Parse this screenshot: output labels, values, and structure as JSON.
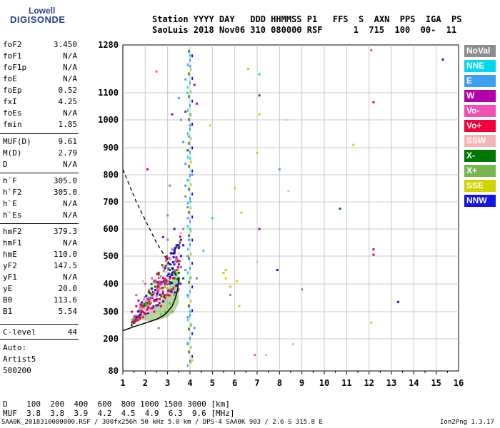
{
  "logo": {
    "line1": "Lowell",
    "line2": "DIGISONDE"
  },
  "header": {
    "line1": "Station YYYY DAY   DDD HHMMSS P1   FFS  S  AXN  PPS  IGA  PS",
    "line2": "SaoLuis 2018 Nov06 310 080000 RSF      1  715  100  00-  11"
  },
  "params": [
    {
      "name": "foF2",
      "value": "3.450"
    },
    {
      "name": "foF1",
      "value": "N/A"
    },
    {
      "name": "foF1p",
      "value": "N/A"
    },
    {
      "name": "foE",
      "value": "N/A"
    },
    {
      "name": "foEp",
      "value": "0.52"
    },
    {
      "name": "fxI",
      "value": "4.25"
    },
    {
      "name": "foEs",
      "value": "N/A"
    },
    {
      "name": "fmin",
      "value": "1.85"
    },
    {
      "name": "MUF(D)",
      "value": "9.61"
    },
    {
      "name": "M(D)",
      "value": "2.79"
    },
    {
      "name": "D",
      "value": "N/A"
    },
    {
      "name": "h`F",
      "value": "305.0"
    },
    {
      "name": "h`F2",
      "value": "305.0"
    },
    {
      "name": "h`E",
      "value": "N/A"
    },
    {
      "name": "h`Es",
      "value": "N/A"
    },
    {
      "name": "hmF2",
      "value": "379.3"
    },
    {
      "name": "hmF1",
      "value": "N/A"
    },
    {
      "name": "hmE",
      "value": "110.0"
    },
    {
      "name": "yF2",
      "value": "147.5"
    },
    {
      "name": "yF1",
      "value": "N/A"
    },
    {
      "name": "yE",
      "value": "20.0"
    },
    {
      "name": "B0",
      "value": "113.6"
    },
    {
      "name": "B1",
      "value": "5.54"
    },
    {
      "name": "C-level",
      "value": "44"
    }
  ],
  "notes": {
    "auto": "Auto:",
    "artist": "Artist5",
    "version": "500200"
  },
  "legend": [
    {
      "label": "NoVal",
      "color": "#8c8c8c"
    },
    {
      "label": "NNE",
      "color": "#00d8f0"
    },
    {
      "label": "E",
      "color": "#3ca0f0"
    },
    {
      "label": "W",
      "color": "#b400a8"
    },
    {
      "label": "Vo-",
      "color": "#f050b0"
    },
    {
      "label": "Vo+",
      "color": "#f0003c"
    },
    {
      "label": "SSW",
      "color": "#f5b4b4"
    },
    {
      "label": "X-",
      "color": "#007800"
    },
    {
      "label": "X+",
      "color": "#78b450"
    },
    {
      "label": "SSE",
      "color": "#d2d200"
    },
    {
      "label": "NNW",
      "color": "#1414e6"
    }
  ],
  "bottom": {
    "d_row": "D    100  200  400  600  800 1000 1500 3000 [km]",
    "muf_row": "MUF  3.8  3.8  3.9  4.2  4.5  4.9  6.3  9.6 [MHz]"
  },
  "footer": {
    "left": "SAA0K_2018310080000.RSF / 300fx256h 50 kHz 5.0 km / DPS-4 SAA0K 903 / 2.6 S 315.8 E",
    "right": "Ion2Png 1.3.17"
  },
  "chart_data": {
    "type": "scatter",
    "x_ticks": [
      "1",
      "2",
      "3",
      "4",
      "5",
      "6",
      "7",
      "8",
      "9",
      "10",
      "11",
      "12",
      "13",
      "14",
      "15",
      "16"
    ],
    "y_ticks": [
      "80",
      "200",
      "300",
      "400",
      "500",
      "600",
      "700",
      "800",
      "900",
      "1000",
      "1100",
      "1280"
    ],
    "xlim": [
      1,
      16
    ],
    "ylim": [
      80,
      1280
    ],
    "grid": true,
    "profile_dashed": [
      [
        1,
        820
      ],
      [
        1.3,
        760
      ],
      [
        1.6,
        700
      ],
      [
        1.9,
        650
      ],
      [
        2.2,
        600
      ],
      [
        2.5,
        550
      ],
      [
        2.8,
        510
      ],
      [
        3.1,
        470
      ],
      [
        3.3,
        440
      ],
      [
        3.45,
        420
      ]
    ],
    "trace_solid": [
      [
        1,
        230
      ],
      [
        1.5,
        245
      ],
      [
        2,
        258
      ],
      [
        2.5,
        272
      ],
      [
        2.8,
        285
      ],
      [
        3.0,
        300
      ],
      [
        3.2,
        320
      ],
      [
        3.35,
        350
      ],
      [
        3.45,
        380
      ],
      [
        3.5,
        420
      ]
    ],
    "ohw_region": [
      [
        1.6,
        280
      ],
      [
        2.2,
        300
      ],
      [
        2.6,
        330
      ],
      [
        3.0,
        380
      ],
      [
        3.3,
        430
      ],
      [
        3.45,
        460
      ],
      [
        3.5,
        400
      ],
      [
        3.5,
        330
      ],
      [
        3.3,
        300
      ],
      [
        3.0,
        280
      ],
      [
        2.6,
        270
      ],
      [
        2.2,
        265
      ],
      [
        1.6,
        275
      ]
    ],
    "points": [
      {
        "x": 3.2,
        "y": 510,
        "c": "NNW"
      },
      {
        "x": 3.4,
        "y": 490,
        "c": "NNW"
      },
      {
        "x": 3.5,
        "y": 530,
        "c": "NNW"
      },
      {
        "x": 3.6,
        "y": 560,
        "c": "NNW"
      },
      {
        "x": 3.3,
        "y": 470,
        "c": "NNW"
      },
      {
        "x": 3.5,
        "y": 470,
        "c": "NNW"
      },
      {
        "x": 3.6,
        "y": 500,
        "c": "NNW"
      },
      {
        "x": 3.4,
        "y": 540,
        "c": "NNW"
      },
      {
        "x": 3.1,
        "y": 450,
        "c": "NNW"
      },
      {
        "x": 3.7,
        "y": 540,
        "c": "NNW"
      },
      {
        "x": 3.3,
        "y": 600,
        "c": "NNW"
      },
      {
        "x": 3.0,
        "y": 430,
        "c": "NNW"
      },
      {
        "x": 2.8,
        "y": 410,
        "c": "NNW"
      },
      {
        "x": 3.5,
        "y": 420,
        "c": "NNW"
      },
      {
        "x": 7.9,
        "y": 450,
        "c": "NNW"
      },
      {
        "x": 13.3,
        "y": 335,
        "c": "NNW"
      },
      {
        "x": 15.3,
        "y": 1225,
        "c": "NNW"
      },
      {
        "x": 1.4,
        "y": 300,
        "c": "Vo+"
      },
      {
        "x": 1.6,
        "y": 320,
        "c": "Vo+"
      },
      {
        "x": 1.8,
        "y": 290,
        "c": "Vo+"
      },
      {
        "x": 2.0,
        "y": 330,
        "c": "Vo+"
      },
      {
        "x": 2.1,
        "y": 310,
        "c": "Vo+"
      },
      {
        "x": 2.3,
        "y": 360,
        "c": "Vo+"
      },
      {
        "x": 2.5,
        "y": 340,
        "c": "Vo+"
      },
      {
        "x": 2.6,
        "y": 390,
        "c": "Vo+"
      },
      {
        "x": 2.8,
        "y": 370,
        "c": "Vo+"
      },
      {
        "x": 3.0,
        "y": 400,
        "c": "Vo+"
      },
      {
        "x": 3.1,
        "y": 420,
        "c": "Vo+"
      },
      {
        "x": 2.4,
        "y": 300,
        "c": "Vo+"
      },
      {
        "x": 1.9,
        "y": 280,
        "c": "Vo+"
      },
      {
        "x": 1.5,
        "y": 280,
        "c": "Vo+"
      },
      {
        "x": 2.7,
        "y": 320,
        "c": "Vo+"
      },
      {
        "x": 2.9,
        "y": 350,
        "c": "Vo+"
      },
      {
        "x": 3.2,
        "y": 380,
        "c": "Vo+"
      },
      {
        "x": 2.2,
        "y": 350,
        "c": "Vo+"
      },
      {
        "x": 1.7,
        "y": 340,
        "c": "Vo+"
      },
      {
        "x": 12.2,
        "y": 1065,
        "c": "Vo+"
      },
      {
        "x": 12.2,
        "y": 525,
        "c": "Vo+"
      },
      {
        "x": 12.2,
        "y": 505,
        "c": "Vo+"
      },
      {
        "x": 3.4,
        "y": 450,
        "c": "Vo+"
      },
      {
        "x": 2.6,
        "y": 440,
        "c": "Vo+"
      },
      {
        "x": 2.0,
        "y": 400,
        "c": "Vo-"
      },
      {
        "x": 2.3,
        "y": 420,
        "c": "Vo-"
      },
      {
        "x": 1.6,
        "y": 360,
        "c": "Vo-"
      },
      {
        "x": 2.8,
        "y": 460,
        "c": "Vo-"
      },
      {
        "x": 3.1,
        "y": 490,
        "c": "Vo-"
      },
      {
        "x": 12.1,
        "y": 1260,
        "c": "Vo-"
      },
      {
        "x": 2.5,
        "y": 1180,
        "c": "Vo-"
      },
      {
        "x": 6.9,
        "y": 140,
        "c": "Vo-"
      },
      {
        "x": 2.9,
        "y": 300,
        "c": "X+"
      },
      {
        "x": 3.1,
        "y": 330,
        "c": "X+"
      },
      {
        "x": 3.3,
        "y": 360,
        "c": "X+"
      },
      {
        "x": 3.4,
        "y": 400,
        "c": "X+"
      },
      {
        "x": 2.7,
        "y": 290,
        "c": "X+"
      },
      {
        "x": 3.5,
        "y": 380,
        "c": "X+"
      },
      {
        "x": 3.2,
        "y": 300,
        "c": "X+"
      },
      {
        "x": 3.0,
        "y": 360,
        "c": "X+"
      },
      {
        "x": 3.3,
        "y": 420,
        "c": "X-"
      },
      {
        "x": 3.5,
        "y": 440,
        "c": "X-"
      },
      {
        "x": 3.1,
        "y": 400,
        "c": "X-"
      },
      {
        "x": 3.4,
        "y": 480,
        "c": "X-"
      },
      {
        "x": 3.6,
        "y": 460,
        "c": "X-"
      },
      {
        "x": 3.7,
        "y": 420,
        "c": "X-"
      },
      {
        "x": 3.2,
        "y": 440,
        "c": "X-"
      },
      {
        "x": 10.7,
        "y": 675,
        "c": "X-"
      },
      {
        "x": 7.1,
        "y": 1090,
        "c": "X-"
      },
      {
        "x": 3.9,
        "y": 890,
        "c": "X-"
      },
      {
        "x": 3.5,
        "y": 1080,
        "c": "E"
      },
      {
        "x": 3.6,
        "y": 1000,
        "c": "E"
      },
      {
        "x": 3.7,
        "y": 920,
        "c": "E"
      },
      {
        "x": 3.8,
        "y": 840,
        "c": "E"
      },
      {
        "x": 3.8,
        "y": 760,
        "c": "E"
      },
      {
        "x": 3.9,
        "y": 680,
        "c": "E"
      },
      {
        "x": 3.9,
        "y": 640,
        "c": "E"
      },
      {
        "x": 3.95,
        "y": 560,
        "c": "E"
      },
      {
        "x": 3.9,
        "y": 500,
        "c": "E"
      },
      {
        "x": 3.8,
        "y": 450,
        "c": "E"
      },
      {
        "x": 3.9,
        "y": 360,
        "c": "E"
      },
      {
        "x": 3.95,
        "y": 320,
        "c": "E"
      },
      {
        "x": 3.9,
        "y": 280,
        "c": "E"
      },
      {
        "x": 4.0,
        "y": 1200,
        "c": "E"
      },
      {
        "x": 3.8,
        "y": 1150,
        "c": "E"
      },
      {
        "x": 4.0,
        "y": 980,
        "c": "E"
      },
      {
        "x": 4.1,
        "y": 800,
        "c": "E"
      },
      {
        "x": 4.2,
        "y": 240,
        "c": "E"
      },
      {
        "x": 3.9,
        "y": 180,
        "c": "E"
      },
      {
        "x": 8.0,
        "y": 820,
        "c": "E"
      },
      {
        "x": 4.0,
        "y": 1240,
        "c": "NNE"
      },
      {
        "x": 3.9,
        "y": 1100,
        "c": "NNE"
      },
      {
        "x": 4.0,
        "y": 1020,
        "c": "NNE"
      },
      {
        "x": 3.95,
        "y": 940,
        "c": "NNE"
      },
      {
        "x": 4.0,
        "y": 860,
        "c": "NNE"
      },
      {
        "x": 3.9,
        "y": 780,
        "c": "NNE"
      },
      {
        "x": 4.0,
        "y": 700,
        "c": "NNE"
      },
      {
        "x": 4.0,
        "y": 600,
        "c": "NNE"
      },
      {
        "x": 4.0,
        "y": 420,
        "c": "NNE"
      },
      {
        "x": 4.0,
        "y": 300,
        "c": "NNE"
      },
      {
        "x": 4.05,
        "y": 250,
        "c": "NNE"
      },
      {
        "x": 7.1,
        "y": 1170,
        "c": "NNE"
      },
      {
        "x": 4.6,
        "y": 520,
        "c": "NNE"
      },
      {
        "x": 5.0,
        "y": 640,
        "c": "NNE"
      },
      {
        "x": 5.5,
        "y": 440,
        "c": "SSE"
      },
      {
        "x": 5.6,
        "y": 420,
        "c": "SSE"
      },
      {
        "x": 5.8,
        "y": 390,
        "c": "SSE"
      },
      {
        "x": 6.1,
        "y": 410,
        "c": "SSE"
      },
      {
        "x": 6.2,
        "y": 320,
        "c": "SSE"
      },
      {
        "x": 7.1,
        "y": 1020,
        "c": "SSE"
      },
      {
        "x": 7.0,
        "y": 880,
        "c": "SSE"
      },
      {
        "x": 6.6,
        "y": 1190,
        "c": "SSE"
      },
      {
        "x": 4.1,
        "y": 120,
        "c": "SSE"
      },
      {
        "x": 6.3,
        "y": 660,
        "c": "SSE"
      },
      {
        "x": 11.3,
        "y": 910,
        "c": "SSE"
      },
      {
        "x": 6.0,
        "y": 750,
        "c": "SSE"
      },
      {
        "x": 5.6,
        "y": 450,
        "c": "SSE"
      },
      {
        "x": 12.1,
        "y": 260,
        "c": "SSE"
      },
      {
        "x": 4.9,
        "y": 980,
        "c": "SSE"
      },
      {
        "x": 1.9,
        "y": 410,
        "c": "SSW"
      },
      {
        "x": 2.2,
        "y": 380,
        "c": "SSW"
      },
      {
        "x": 2.4,
        "y": 400,
        "c": "SSW"
      },
      {
        "x": 8.3,
        "y": 1000,
        "c": "SSW"
      },
      {
        "x": 8.6,
        "y": 180,
        "c": "SSW"
      },
      {
        "x": 7.4,
        "y": 140,
        "c": "SSW"
      },
      {
        "x": 8.4,
        "y": 740,
        "c": "SSW"
      },
      {
        "x": 7.0,
        "y": 480,
        "c": "SSW"
      },
      {
        "x": 3.0,
        "y": 1100,
        "c": "SSW"
      },
      {
        "x": 3.2,
        "y": 1020,
        "c": "W"
      },
      {
        "x": 2.1,
        "y": 820,
        "c": "W"
      },
      {
        "x": 7.1,
        "y": 600,
        "c": "W"
      },
      {
        "x": 4.3,
        "y": 1060,
        "c": "W"
      },
      {
        "x": 4.2,
        "y": 1130,
        "c": "W"
      },
      {
        "x": 3.8,
        "y": 1030,
        "c": "W"
      },
      {
        "x": 2.8,
        "y": 570,
        "c": "W"
      },
      {
        "x": 2.6,
        "y": 240,
        "c": "NoVal"
      },
      {
        "x": 3.8,
        "y": 720,
        "c": "NoVal"
      },
      {
        "x": 3.1,
        "y": 760,
        "c": "NoVal"
      },
      {
        "x": 3.7,
        "y": 600,
        "c": "NoVal"
      },
      {
        "x": 4.3,
        "y": 420,
        "c": "NoVal"
      },
      {
        "x": 3.0,
        "y": 560,
        "c": "NoVal"
      },
      {
        "x": 3.0,
        "y": 650,
        "c": "NoVal"
      },
      {
        "x": 5.8,
        "y": 360,
        "c": "NoVal"
      },
      {
        "x": 9.0,
        "y": 380,
        "c": "NoVal"
      }
    ]
  }
}
